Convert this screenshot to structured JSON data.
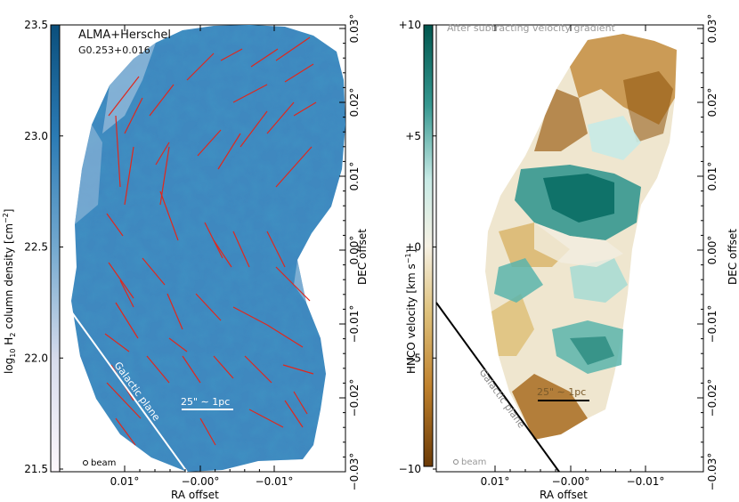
{
  "chart_data": [
    {
      "type": "heatmap",
      "title": "ALMA+Herschel",
      "subtitle": "G0.253+0.016",
      "colorbar_label_prefix": "log",
      "colorbar_label_sub": "10",
      "colorbar_label_main": " H",
      "colorbar_label_sub2": "2",
      "colorbar_label_rest": " column density [cm",
      "colorbar_label_sup": "−2",
      "colorbar_label_end": "]",
      "colorbar_range": [
        21.5,
        23.5
      ],
      "colorbar_ticks": [
        "21.5",
        "22.0",
        "22.5",
        "23.0",
        "23.5"
      ],
      "colorbar_colors": [
        "#fdf7fb",
        "#a9c3e0",
        "#1c6fa6",
        "#0b4f7c"
      ],
      "xlabel": "RA offset",
      "xticks": [
        "0.01°",
        "−0.00°",
        "−0.01°"
      ],
      "ylabel": "DEC offset",
      "yticks": [
        "−0.03°",
        "−0.02°",
        "−0.01°",
        "0.00°",
        "0.01°",
        "0.02°",
        "0.03°"
      ],
      "scalebar": "25\" ∼ 1pc",
      "plane_label": "Galactic plane",
      "beam_label": "beam"
    },
    {
      "type": "heatmap",
      "title": "After subtracting velocity gradient",
      "colorbar_label": "HNCO velocity [km s",
      "colorbar_label_sup": "−1",
      "colorbar_label_end": "]",
      "colorbar_range": [
        -10,
        10
      ],
      "colorbar_ticks": [
        "−10",
        "−5",
        "+0",
        "+5",
        "+10"
      ],
      "colorbar_colors": [
        "#8c510a",
        "#d8b365",
        "#f6e8c3",
        "#f5f5f5",
        "#c7eae5",
        "#5ab4ac",
        "#01665e"
      ],
      "xlabel": "RA offset",
      "xticks": [
        "0.01°",
        "−0.00°",
        "−0.01°"
      ],
      "ylabel": "DEC offset",
      "yticks": [
        "−0.03°",
        "−0.02°",
        "−0.01°",
        "0.00°",
        "0.01°",
        "0.02°",
        "0.03°"
      ],
      "scalebar": "25\" ∼ 1pc",
      "plane_label": "Galactic plane",
      "beam_label": "beam"
    }
  ]
}
